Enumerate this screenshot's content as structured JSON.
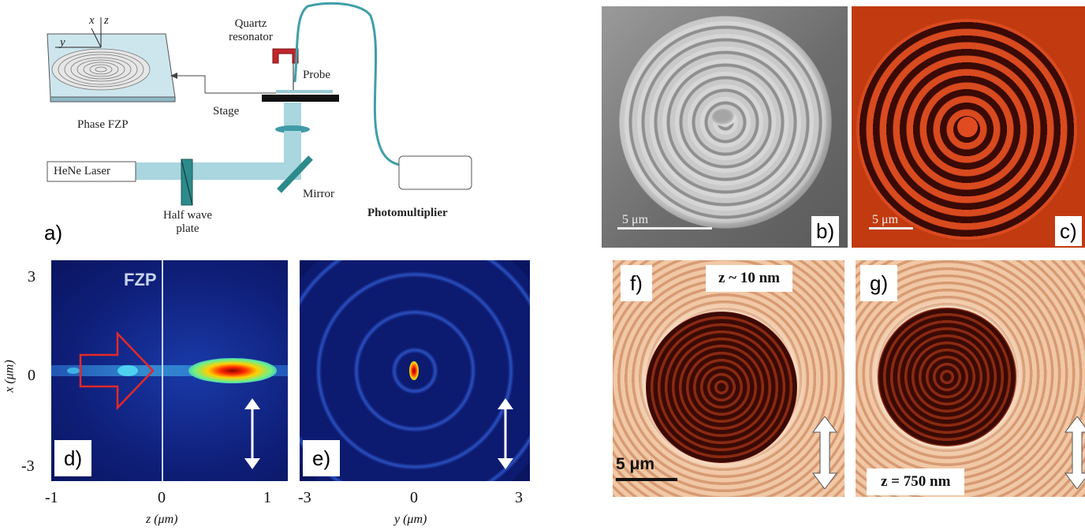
{
  "panel_a": {
    "label": "a)",
    "quartz_resonator": "Quartz\nresonator",
    "probe": "Probe",
    "stage": "Stage",
    "phase_fzp": "Phase FZP",
    "laser": "HeNe Laser",
    "half_wave_plate": "Half wave\nplate",
    "mirror": "Mirror",
    "photomultiplier": "Photomultiplier",
    "axis_x": "x",
    "axis_y": "y",
    "axis_z": "z"
  },
  "panel_b": {
    "label": "b)",
    "scale_text": "5 μm"
  },
  "panel_c": {
    "label": "c)",
    "scale_text": "5 μm"
  },
  "panel_d": {
    "label": "d)",
    "fzp_text": "FZP",
    "x_ticks": [
      "-1",
      "0",
      "1"
    ],
    "y_ticks": [
      "3",
      "0",
      "-3"
    ],
    "xlabel": "z (μm)",
    "ylabel": "x (μm)"
  },
  "panel_e": {
    "label": "e)",
    "x_ticks": [
      "-3",
      "0",
      "3"
    ],
    "xlabel": "y (μm)"
  },
  "panel_f": {
    "label": "f)",
    "z_text": "z ~ 10 nm",
    "scale_text": "5 μm"
  },
  "panel_g": {
    "label": "g)",
    "z_text": "z = 750 nm"
  }
}
